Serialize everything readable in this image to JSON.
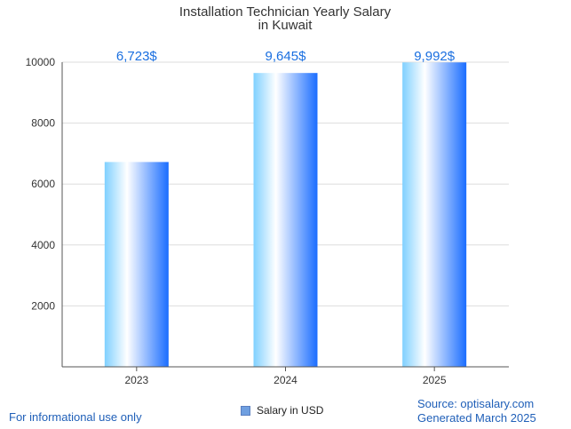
{
  "chart_data": {
    "type": "bar",
    "title_lines": [
      "Installation Technician Yearly Salary",
      "in Kuwait"
    ],
    "categories": [
      "2023",
      "2024",
      "2025"
    ],
    "series": [
      {
        "name": "Salary in USD",
        "values": [
          6723,
          9645,
          9992
        ]
      }
    ],
    "data_labels": [
      "6,723$",
      "9,645$",
      "9,992$"
    ],
    "ylim": [
      0,
      10000
    ],
    "yticks": [
      2000,
      4000,
      6000,
      8000,
      10000
    ],
    "grid": true,
    "legend_position": "bottom-center"
  },
  "footer": {
    "note": "For informational use only",
    "source_line1": "Source: optisalary.com",
    "source_line2": "Generated March 2025"
  },
  "colors": {
    "bar_left": "#7fd0ff",
    "bar_mid": "#ffffff",
    "bar_right": "#1a6dff",
    "label": "#1a6fe0",
    "footer_text": "#1f5fb8"
  }
}
